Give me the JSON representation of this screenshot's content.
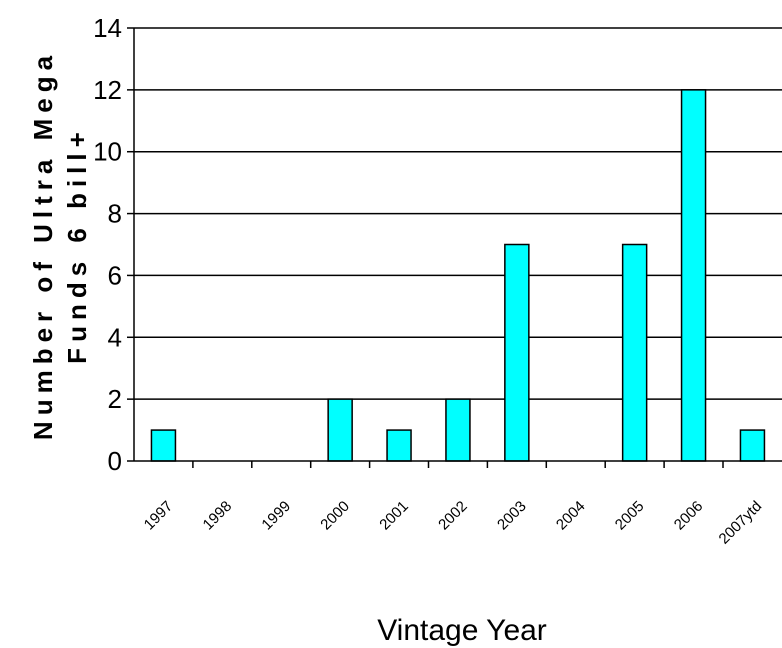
{
  "chart_data": {
    "type": "bar",
    "categories": [
      "1997",
      "1998",
      "1999",
      "2000",
      "2001",
      "2002",
      "2003",
      "2004",
      "2005",
      "2006",
      "2007ytd"
    ],
    "values": [
      1,
      0,
      0,
      2,
      1,
      2,
      7,
      0,
      7,
      12,
      1
    ],
    "ylabel_line1": "Number of Ultra Mega",
    "ylabel_line2": "Funds 6 bill+",
    "xlabel": "Vintage Year",
    "ylim": [
      0,
      14
    ],
    "yticks": [
      0,
      2,
      4,
      6,
      8,
      10,
      12,
      14
    ],
    "grid": true,
    "legend": "none",
    "colors": {
      "bar_fill": "#00FFFF",
      "bar_stroke": "#000000",
      "gridline": "#000000",
      "axis": "#000000"
    }
  }
}
